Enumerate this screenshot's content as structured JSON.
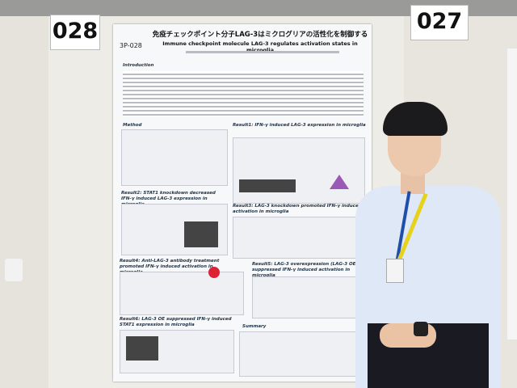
{
  "signs": [
    "028",
    "027"
  ],
  "poster": {
    "id": "3P-028",
    "title": "免疫チェックポイント分子LAG-3はミクログリアの活性化を制御する",
    "subtitle": "Immune checkpoint molecule LAG-3 regulates activation states in microglia",
    "sections": [
      "Introduction",
      "Method",
      "Result1: IFN-γ induced LAG-3 expression in microglia",
      "Result2: STAT1 knockdown decreased IFN-γ induced LAG-3 expression in microglia",
      "Result3: LAG-3 knockdown promoted IFN-γ induced activation in microglia",
      "Result4: Anti-LAG-3 antibody treatment promoted IFN-γ induced activation in microglia",
      "Result5: LAG-3 overexpression (LAG-3 OE) suppressed IFN-γ induced activation in microglia",
      "Result6: LAG-3 OE suppressed IFN-γ induced STAT1 expression in microglia",
      "Summary"
    ]
  }
}
